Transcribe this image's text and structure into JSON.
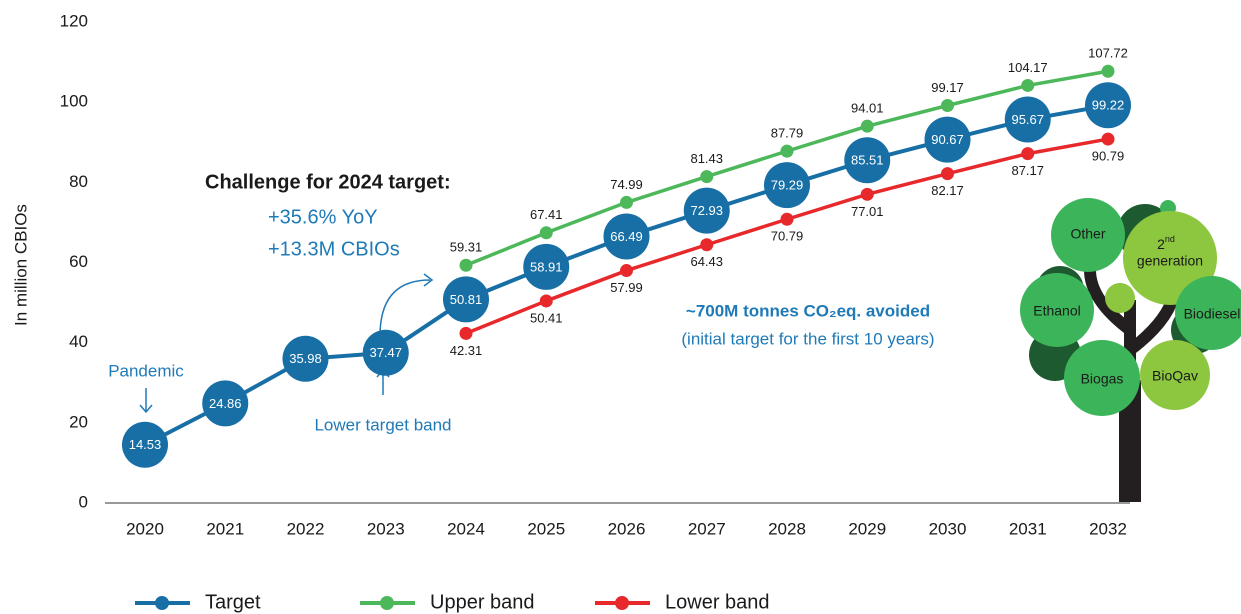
{
  "chart_data": {
    "type": "line",
    "y_label": "In million CBIOs",
    "categories": [
      "2020",
      "2021",
      "2022",
      "2023",
      "2024",
      "2025",
      "2026",
      "2027",
      "2028",
      "2029",
      "2030",
      "2031",
      "2032"
    ],
    "series": [
      {
        "name": "Target",
        "color": "#176fa6",
        "values": [
          14.53,
          24.86,
          35.98,
          37.47,
          50.81,
          58.91,
          66.49,
          72.93,
          79.29,
          85.51,
          90.67,
          95.67,
          99.22
        ]
      },
      {
        "name": "Upper band",
        "color": "#4cb85a",
        "values": [
          null,
          null,
          null,
          null,
          59.31,
          67.41,
          74.99,
          81.43,
          87.79,
          94.01,
          99.17,
          104.17,
          107.72
        ]
      },
      {
        "name": "Lower band",
        "color": "#e8292c",
        "values": [
          null,
          null,
          null,
          null,
          42.31,
          50.41,
          57.99,
          64.43,
          70.79,
          77.01,
          82.17,
          87.17,
          90.79
        ]
      }
    ],
    "ylim": [
      0,
      120
    ],
    "yticks": [
      0,
      20,
      40,
      60,
      80,
      100,
      120
    ],
    "grid": false,
    "legend": "bottom",
    "annotations": {
      "challenge": "Challenge for 2024 target:",
      "yoy": "+35.6% YoY",
      "cbios": "+13.3M CBIOs",
      "pandemic": "Pandemic",
      "lower_band": "Lower target band",
      "avoided": "~700M tonnes CO₂eq. avoided",
      "avoided_note": "(initial target for the first 10 years)"
    },
    "tree_labels": {
      "other": "Other",
      "second_num": "2",
      "second_sup": "nd",
      "second": "generation",
      "ethanol": "Ethanol",
      "biodiesel": "Biodiesel",
      "biogas": "Biogas",
      "bioqav": "BioQav"
    }
  }
}
